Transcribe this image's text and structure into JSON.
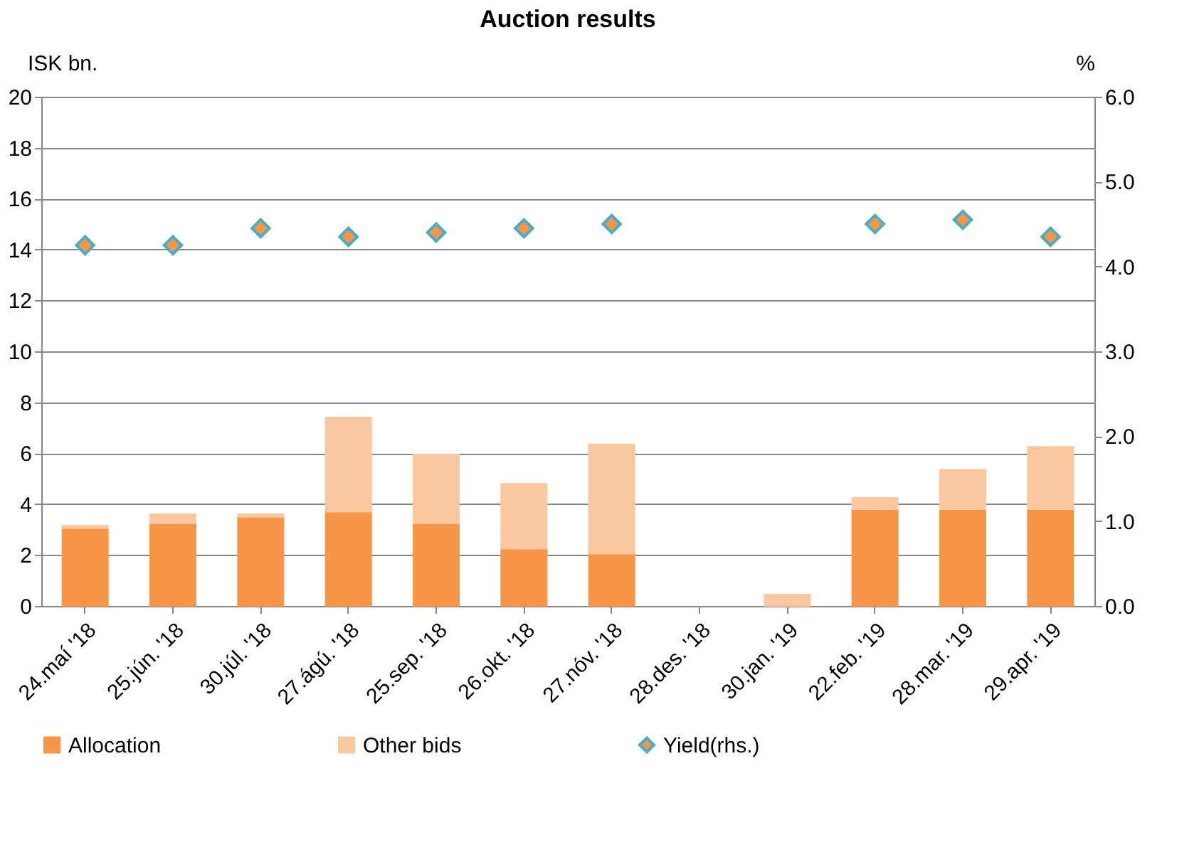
{
  "chart_data": {
    "type": "bar",
    "title": "Auction results",
    "ylabel": "ISK bn.",
    "y2label": "%",
    "categories": [
      "24.maí '18",
      "25.jún. '18",
      "30.júl. '18",
      "27.ágú. '18",
      "25.sep. '18",
      "26.okt. '18",
      "27.nóv. '18",
      "28.des. '18",
      "30.jan. '19",
      "22.feb. '19",
      "28.mar. '19",
      "29.apr. '19"
    ],
    "stacked": true,
    "series": [
      {
        "name": "Allocation",
        "color": "#f79646",
        "values": [
          3.05,
          3.25,
          3.5,
          3.7,
          3.25,
          2.25,
          2.05,
          null,
          null,
          3.8,
          3.8,
          3.8
        ]
      },
      {
        "name": "Other bids",
        "color": "#fac8a0",
        "values": [
          0.1,
          0.35,
          0.1,
          3.7,
          2.7,
          2.55,
          4.3,
          null,
          0.45,
          0.45,
          1.55,
          2.45
        ]
      },
      {
        "name": "Yield(rhs.)",
        "type": "scatter",
        "axis": "y2",
        "color": "#f79646",
        "marker": "diamond",
        "values": [
          4.25,
          4.25,
          4.45,
          4.35,
          4.4,
          4.45,
          4.5,
          null,
          null,
          4.5,
          4.55,
          4.35
        ]
      }
    ],
    "ylim": [
      0,
      20
    ],
    "yticks": [
      0,
      2,
      4,
      6,
      8,
      10,
      12,
      14,
      16,
      18,
      20
    ],
    "y2lim": [
      0,
      6
    ],
    "y2ticks": [
      {
        "value": 0,
        "label": "0.0"
      },
      {
        "value": 1,
        "label": "1.0"
      },
      {
        "value": 2,
        "label": "2.0"
      },
      {
        "value": 3,
        "label": "3.0"
      },
      {
        "value": 4,
        "label": "4.0"
      },
      {
        "value": 5,
        "label": "5.0"
      },
      {
        "value": 6,
        "label": "6.0"
      }
    ],
    "grid": "y",
    "legend": "bottom"
  }
}
